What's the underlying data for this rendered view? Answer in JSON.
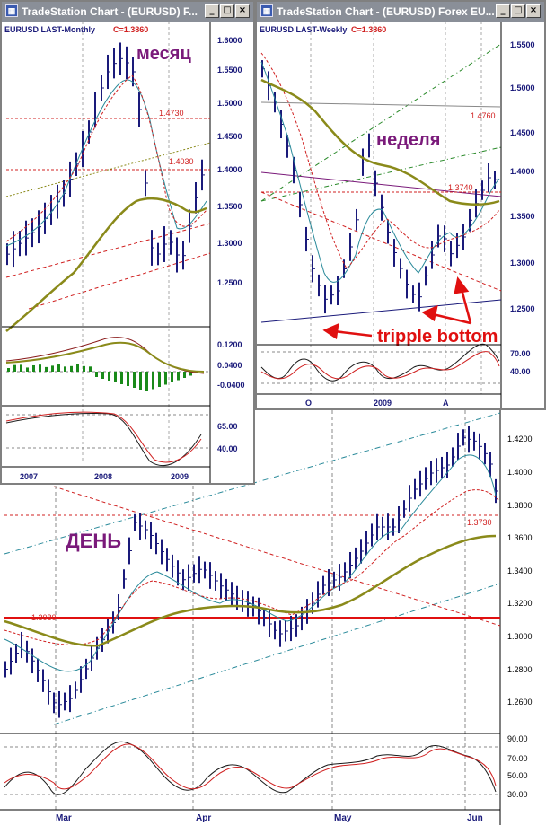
{
  "colors": {
    "price": "#1a1a7a",
    "ma_fast": "#2a8a9a",
    "ma_slow": "#8a8a1a",
    "ma_red": "#d02020",
    "level": "#d02020",
    "label_purple": "#7a1a7a",
    "annot_red": "#e01010",
    "grid": "#808080"
  },
  "windows": {
    "monthly": {
      "title": "TradeStation Chart - (EURUSD) F...",
      "header": "EURUSD LAST-Monthly",
      "close": "C=1.3860",
      "overlay": "месяц",
      "price_axis": [
        "1.6000",
        "1.5500",
        "1.5000",
        "1.4500",
        "1.4000",
        "1.3500",
        "1.3000",
        "1.2500"
      ],
      "levels": [
        "1.4730",
        "1.4030"
      ],
      "macd_axis": [
        "0.1200",
        "0.0400",
        "-0.0400"
      ],
      "stoch_axis": [
        "65.00",
        "40.00"
      ],
      "time_axis": [
        "2007",
        "2008",
        "2009"
      ]
    },
    "weekly": {
      "title": "TradeStation Chart - (EURUSD) Forex EU...",
      "header": "EURUSD LAST-Weekly",
      "close": "C=1.3860",
      "overlay": "неделя",
      "annotation": "tripple bottom",
      "price_axis": [
        "1.5500",
        "1.5000",
        "1.4500",
        "1.4000",
        "1.3500",
        "1.3000",
        "1.2500"
      ],
      "levels": [
        "1.4760",
        "1.3740"
      ],
      "stoch_axis": [
        "70.00",
        "40.00"
      ],
      "time_axis": [
        "O",
        "2009",
        "A"
      ]
    },
    "daily": {
      "overlay": "ДЕНЬ",
      "price_axis": [
        "1.4200",
        "1.4000",
        "1.3800",
        "1.3600",
        "1.3400",
        "1.3200",
        "1.3000",
        "1.2800",
        "1.2600"
      ],
      "levels": [
        "1.3080",
        "1.3730"
      ],
      "stoch_axis": [
        "90.00",
        "70.00",
        "50.00",
        "30.00"
      ],
      "time_axis": [
        "Mar",
        "Apr",
        "May",
        "Jun"
      ]
    }
  },
  "chart_data": [
    {
      "type": "line",
      "name": "EURUSD Monthly",
      "x": [
        "2007",
        "2007-06",
        "2008",
        "2008-06",
        "2008-09",
        "2009",
        "2009-03",
        "2009-06"
      ],
      "y": [
        1.33,
        1.37,
        1.48,
        1.58,
        1.42,
        1.35,
        1.28,
        1.386
      ],
      "ylim": [
        1.2,
        1.62
      ]
    },
    {
      "type": "line",
      "name": "EURUSD Weekly",
      "x": [
        "2008-08",
        "2008-10",
        "2008-11",
        "2009-01",
        "2009-03",
        "2009-04",
        "2009-06"
      ],
      "y": [
        1.56,
        1.33,
        1.26,
        1.45,
        1.28,
        1.3,
        1.386
      ],
      "ylim": [
        1.22,
        1.58
      ]
    },
    {
      "type": "line",
      "name": "EURUSD Daily",
      "x": [
        "Mar",
        "Apr",
        "May",
        "Jun"
      ],
      "y": [
        1.27,
        1.34,
        1.33,
        1.41
      ],
      "ylim": [
        1.24,
        1.44
      ]
    }
  ]
}
